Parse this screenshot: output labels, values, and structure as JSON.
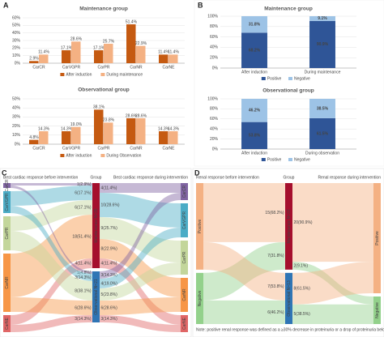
{
  "panel_labels": [
    "A",
    "B",
    "C",
    "D"
  ],
  "chart_data": [
    {
      "type": "bar",
      "title": "Maintenance group",
      "categories": [
        "CarCR",
        "CarVGPR",
        "CarPR",
        "CarNR",
        "CarNE"
      ],
      "series": [
        {
          "name": "After induction",
          "color": "#c55a11",
          "values": [
            2.9,
            17.1,
            17.1,
            51.4,
            11.4
          ],
          "value_labels": [
            "2.9%",
            "17.1%",
            "17.1%",
            "51.4%",
            "11.4%"
          ]
        },
        {
          "name": "During maintenance",
          "color": "#f4b183",
          "values": [
            11.4,
            28.6,
            25.7,
            22.9,
            11.4
          ],
          "value_labels": [
            "11.4%",
            "28.6%",
            "25.7%",
            "22.9%",
            "11.4%"
          ]
        }
      ],
      "ylim": [
        0,
        60
      ],
      "yticks": [
        {
          "value": 0,
          "label": "0%"
        },
        {
          "value": 10,
          "label": "10%"
        },
        {
          "value": 20,
          "label": "20%"
        },
        {
          "value": 30,
          "label": "30%"
        },
        {
          "value": 40,
          "label": "40%"
        },
        {
          "value": 50,
          "label": "50%"
        },
        {
          "value": 60,
          "label": "60%"
        }
      ],
      "grid": true
    },
    {
      "type": "bar",
      "title": "Observational group",
      "categories": [
        "CarCR",
        "CarVGPR",
        "CarPR",
        "CarNR",
        "CarNE"
      ],
      "series": [
        {
          "name": "After induction",
          "color": "#c55a11",
          "values": [
            4.8,
            14.3,
            38.1,
            28.6,
            14.3
          ],
          "value_labels": [
            "4.8%",
            "14.3%",
            "38.1%",
            "28.6%",
            "14.3%"
          ]
        },
        {
          "name": "During Observation",
          "color": "#f4b183",
          "values": [
            14.3,
            19.0,
            23.8,
            28.6,
            14.3
          ],
          "value_labels": [
            "14.3%",
            "19.0%",
            "23.8%",
            "28.6%",
            "14.3%"
          ]
        }
      ],
      "ylim": [
        0,
        50
      ],
      "yticks": [
        {
          "value": 0,
          "label": "0%"
        },
        {
          "value": 10,
          "label": "10%"
        },
        {
          "value": 20,
          "label": "20%"
        },
        {
          "value": 30,
          "label": "30%"
        },
        {
          "value": 40,
          "label": "40%"
        },
        {
          "value": 50,
          "label": "50%"
        }
      ],
      "grid": true
    },
    {
      "type": "stacked_bar",
      "title": "Maintenance group",
      "categories": [
        "After induction",
        "During maintenance"
      ],
      "series": [
        {
          "name": "Positive",
          "color": "#2f5597",
          "values": [
            68.2,
            90.9
          ],
          "value_labels": [
            "68.2%",
            "90.9%"
          ]
        },
        {
          "name": "Negative",
          "color": "#9dc3e6",
          "values": [
            31.8,
            9.1
          ],
          "value_labels": [
            "31.8%",
            "9.1%"
          ]
        }
      ],
      "ylim": [
        0,
        100
      ],
      "yticks": [
        {
          "value": 0,
          "label": "0%"
        },
        {
          "value": 20,
          "label": "20%"
        },
        {
          "value": 40,
          "label": "40%"
        },
        {
          "value": 60,
          "label": "60%"
        },
        {
          "value": 80,
          "label": "80%"
        },
        {
          "value": 100,
          "label": "100%"
        }
      ],
      "grid": true
    },
    {
      "type": "stacked_bar",
      "title": "Observational group",
      "categories": [
        "After induction",
        "During observation"
      ],
      "series": [
        {
          "name": "Positive",
          "color": "#2f5597",
          "values": [
            53.8,
            61.5
          ],
          "value_labels": [
            "53.8%",
            "61.5%"
          ]
        },
        {
          "name": "Negative",
          "color": "#9dc3e6",
          "values": [
            46.2,
            38.5
          ],
          "value_labels": [
            "46.2%",
            "38.5%"
          ]
        }
      ],
      "ylim": [
        0,
        100
      ],
      "yticks": [
        {
          "value": 0,
          "label": "0%"
        },
        {
          "value": 20,
          "label": "20%"
        },
        {
          "value": 40,
          "label": "40%"
        },
        {
          "value": 60,
          "label": "60%"
        },
        {
          "value": 80,
          "label": "80%"
        },
        {
          "value": 100,
          "label": "100%"
        }
      ],
      "grid": true
    },
    {
      "type": "sankey",
      "column_titles": [
        "Best cardiac response before intervention",
        "Group",
        "Best cardiac response during intervention"
      ],
      "left_nodes": [
        {
          "name": "CarCR",
          "color": "#8064a2"
        },
        {
          "name": "CarVGPR",
          "color": "#4bacc6"
        },
        {
          "name": "CarPR",
          "color": "#c3d69b"
        },
        {
          "name": "CarNR",
          "color": "#f79646"
        },
        {
          "name": "CarNE",
          "color": "#e06666"
        }
      ],
      "right_nodes": [
        {
          "name": "CarCR",
          "color": "#8064a2"
        },
        {
          "name": "CarVGPR",
          "color": "#4bacc6"
        },
        {
          "name": "CarPR",
          "color": "#c3d69b"
        },
        {
          "name": "CarNR",
          "color": "#f79646"
        },
        {
          "name": "CarNE",
          "color": "#e06666"
        }
      ],
      "middle_nodes": [
        {
          "name": "Maintenance N=35",
          "color": "#a50f2d",
          "inflows": [
            1,
            6,
            6,
            18,
            4
          ],
          "inflow_labels": [
            "1(2.9%)",
            "6(17.1%)",
            "6(17.1%)",
            "18(51.4%)",
            "4(11.4%)"
          ],
          "outflows": [
            4,
            10,
            9,
            8,
            4
          ],
          "outflow_labels": [
            "4(11.4%)",
            "10(28.6%)",
            "9(25.7%)",
            "8(22.9%)",
            "4(11.4%)"
          ]
        },
        {
          "name": "Observational N=21",
          "color": "#2f75b5",
          "inflows": [
            1,
            3,
            8,
            6,
            3
          ],
          "inflow_labels": [
            "1(4.8%)",
            "3(14.3%)",
            "8(38.1%)",
            "6(28.6%)",
            "3(14.3%)"
          ],
          "outflows": [
            3,
            4,
            5,
            6,
            3
          ],
          "outflow_labels": [
            "3(14.3%)",
            "4(19.0%)",
            "5(23.8%)",
            "6(28.6%)",
            "3(14.3%)"
          ]
        }
      ]
    },
    {
      "type": "sankey",
      "column_titles": [
        "Renal response before intervention",
        "Group",
        "Renal response during intervention"
      ],
      "left_nodes": [
        {
          "name": "Positive",
          "color": "#f4b183"
        },
        {
          "name": "Negative",
          "color": "#93d18b"
        }
      ],
      "right_nodes": [
        {
          "name": "Positive",
          "color": "#f4b183"
        },
        {
          "name": "Negative",
          "color": "#93d18b"
        }
      ],
      "middle_nodes": [
        {
          "name": "Maintenance N=22",
          "color": "#a50f2d",
          "inflows": [
            15,
            7
          ],
          "inflow_labels": [
            "15(68.2%)",
            "7(31.8%)"
          ],
          "outflows": [
            20,
            2
          ],
          "outflow_labels": [
            "20(90.9%)",
            "2(9.1%)"
          ]
        },
        {
          "name": "Observational N=13",
          "color": "#2f75b5",
          "inflows": [
            7,
            6
          ],
          "inflow_labels": [
            "7(53.8%)",
            "6(46.2%)"
          ],
          "outflows": [
            8,
            5
          ],
          "outflow_labels": [
            "8(61.5%)",
            "5(38.5%)"
          ]
        }
      ],
      "note": "Note: positive renal response was defined as a ≥30% decrease in proteinuria or a drop of proteinuria below 0.5g/24h in the absence of renal progression"
    }
  ]
}
